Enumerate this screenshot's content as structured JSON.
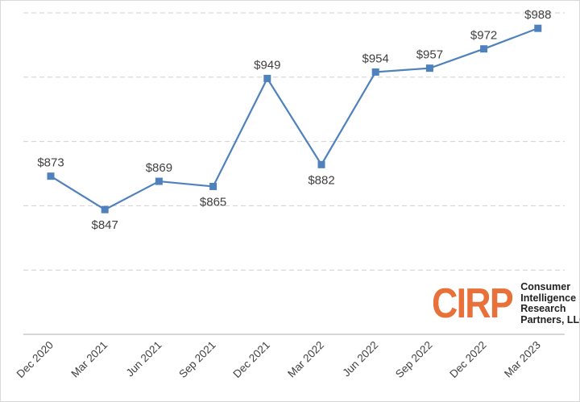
{
  "chart_data": {
    "type": "line",
    "categories": [
      "Dec 2020",
      "Mar 2021",
      "Jun 2021",
      "Sep 2021",
      "Dec 2021",
      "Mar 2022",
      "Jun 2022",
      "Sep 2022",
      "Dec 2022",
      "Mar 2023"
    ],
    "values": [
      873,
      847,
      869,
      865,
      949,
      882,
      954,
      957,
      972,
      988
    ],
    "data_labels": [
      "$873",
      "$847",
      "$869",
      "$865",
      "$949",
      "$882",
      "$954",
      "$957",
      "$972",
      "$988"
    ],
    "ylim": [
      750,
      1000
    ],
    "grid": true,
    "legend": "none",
    "series_color": "#4f81bd"
  },
  "logo": {
    "mark": "CIRP",
    "lines": [
      "Consumer",
      "Intelligence",
      "Research",
      "Partners, LLC"
    ],
    "mark_color": "#e8703a"
  }
}
